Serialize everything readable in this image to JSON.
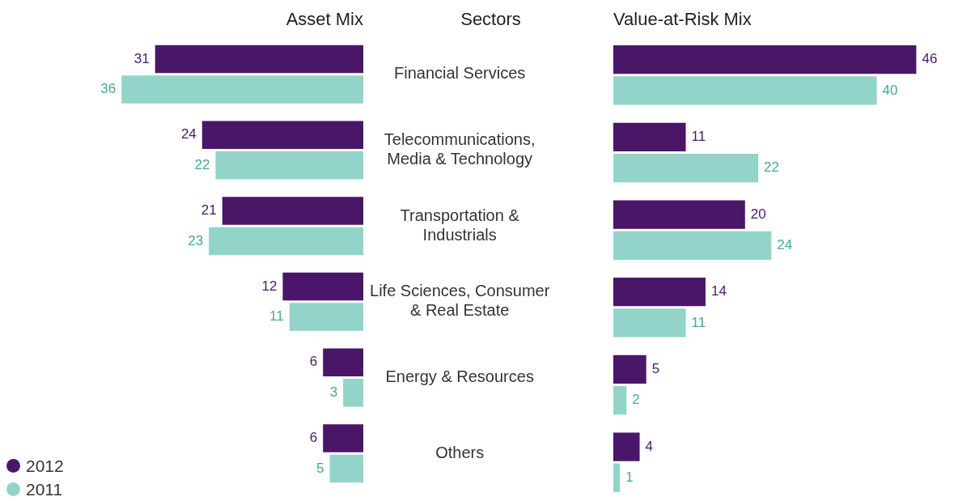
{
  "chart_data": [
    {
      "type": "bar",
      "orientation": "horizontal",
      "title": "Asset Mix",
      "ylabel": "Sectors",
      "categories": [
        "Financial Services",
        "Telecommunications, Media & Technology",
        "Transportation & Industrials",
        "Life Sciences, Consumer & Real Estate",
        "Energy & Resources",
        "Others"
      ],
      "series": [
        {
          "name": "2012",
          "color": "#4a1768",
          "values": [
            31,
            24,
            21,
            12,
            6,
            6
          ]
        },
        {
          "name": "2011",
          "color": "#92d4c9",
          "values": [
            36,
            22,
            23,
            11,
            3,
            5
          ]
        }
      ],
      "data_labels": true,
      "tick_labels": "y",
      "legend": "bottom left"
    },
    {
      "type": "bar",
      "orientation": "horizontal",
      "title": "Value-at-Risk Mix",
      "series": [
        {
          "color": "#4a1768",
          "values": [
            46,
            11,
            20,
            14,
            5,
            4
          ]
        },
        {
          "color": "#92d4c9",
          "values": [
            40,
            22,
            24,
            11,
            2,
            1
          ]
        }
      ],
      "data_labels": true,
      "tick_labels": false
    }
  ]
}
